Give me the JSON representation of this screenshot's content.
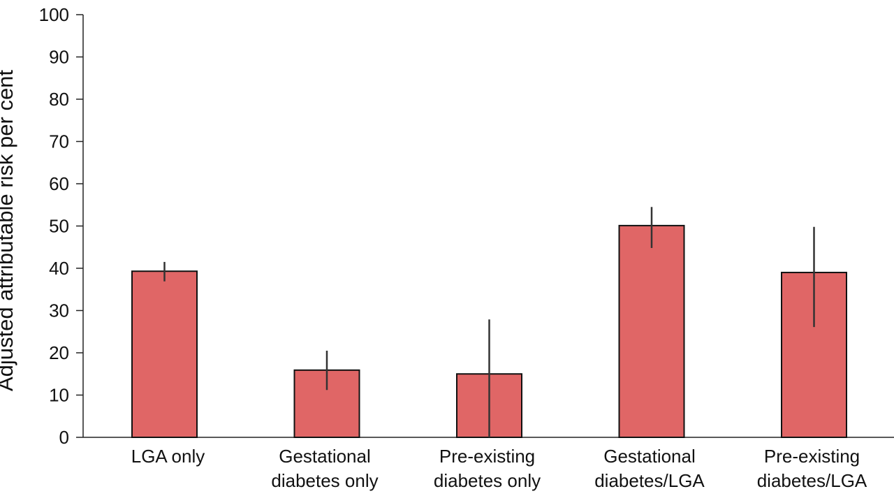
{
  "chart_data": {
    "type": "bar",
    "title": "",
    "xlabel": "",
    "ylabel": "Adjusted attributable risk per cent",
    "ylim": [
      0,
      100
    ],
    "yticks": [
      0,
      10,
      20,
      30,
      40,
      50,
      60,
      70,
      80,
      90,
      100
    ],
    "grid": false,
    "categories": [
      [
        "LGA only"
      ],
      [
        "Gestational",
        "diabetes only"
      ],
      [
        "Pre-existing",
        "diabetes only"
      ],
      [
        "Gestational",
        "diabetes/LGA"
      ],
      [
        "Pre-existing",
        "diabetes/LGA"
      ]
    ],
    "values": [
      39.3,
      15.9,
      15.0,
      50.1,
      39.0
    ],
    "error_low": [
      36.9,
      11.2,
      0,
      44.8,
      26.1
    ],
    "error_high": [
      41.5,
      20.5,
      27.9,
      54.5,
      49.8
    ],
    "colors": {
      "bar": "#e06666",
      "bar_edge": "#111111",
      "error_bar": "#333333",
      "axis": "#222222"
    }
  }
}
